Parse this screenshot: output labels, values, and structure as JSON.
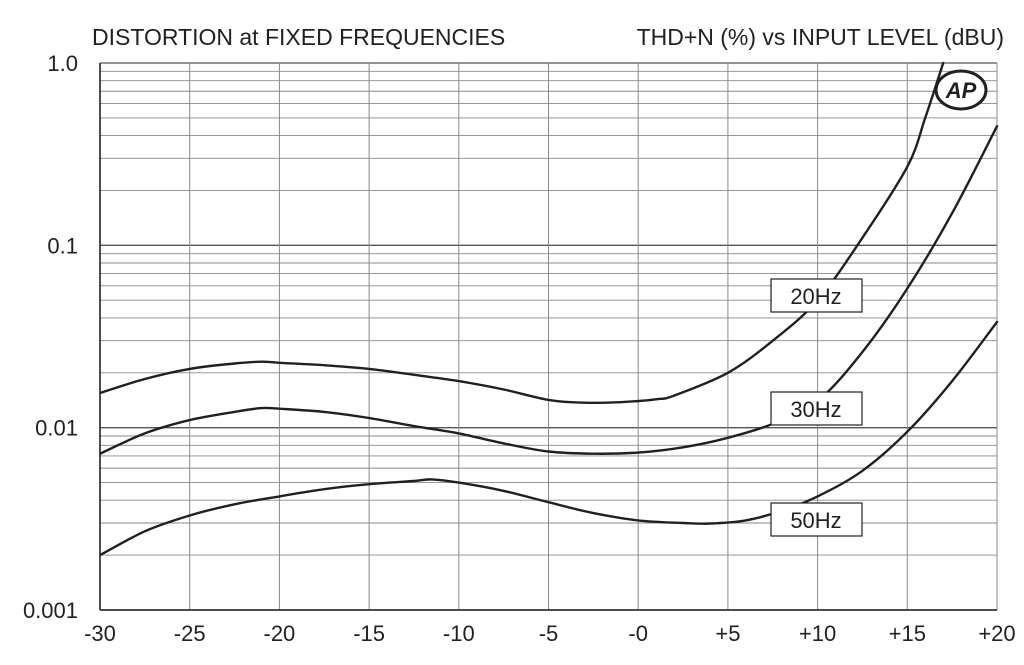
{
  "header": {
    "left_title": "DISTORTION at FIXED FREQUENCIES",
    "right_title": "THD+N (%) vs INPUT LEVEL (dBU)"
  },
  "logo": {
    "text": "AP"
  },
  "chart_data": {
    "type": "line",
    "title": "DISTORTION at FIXED FREQUENCIES",
    "subtitle": "THD+N (%) vs INPUT LEVEL (dBU)",
    "xlabel": "",
    "ylabel": "",
    "xlim": [
      -30,
      20
    ],
    "ylim": [
      0.001,
      1.0
    ],
    "yscale": "log",
    "grid": true,
    "x_ticks": [
      -30,
      -25,
      -20,
      -15,
      -10,
      -5,
      0,
      5,
      10,
      15,
      20
    ],
    "x_tick_labels": [
      "-30",
      "-25",
      "-20",
      "-15",
      "-10",
      "-5",
      "-0",
      "+5",
      "+10",
      "+15",
      "+20"
    ],
    "y_ticks": [
      0.001,
      0.01,
      0.1,
      1.0
    ],
    "y_tick_labels": [
      "0.001",
      "0.01",
      "0.1",
      "1.0"
    ],
    "series": [
      {
        "name": "20Hz",
        "x": [
          -30,
          -27.5,
          -25,
          -22.5,
          -21,
          -20,
          -17.5,
          -15,
          -12.5,
          -10,
          -7.5,
          -5,
          -3,
          -1,
          1,
          2,
          5,
          7.5,
          10,
          12.5,
          15,
          16,
          17
        ],
        "y": [
          0.0155,
          0.0185,
          0.021,
          0.0225,
          0.023,
          0.0227,
          0.022,
          0.021,
          0.0195,
          0.018,
          0.0162,
          0.0142,
          0.0137,
          0.0138,
          0.0143,
          0.015,
          0.02,
          0.03,
          0.05,
          0.11,
          0.27,
          0.5,
          1.0
        ]
      },
      {
        "name": "30Hz",
        "x": [
          -30,
          -27.5,
          -25,
          -22.5,
          -21,
          -20,
          -17.5,
          -15,
          -12.5,
          -10,
          -7.5,
          -5,
          -2.5,
          0,
          2.5,
          5,
          7.5,
          10,
          12.5,
          15,
          17.5,
          20
        ],
        "y": [
          0.0072,
          0.0093,
          0.011,
          0.0122,
          0.0128,
          0.0127,
          0.0122,
          0.0113,
          0.0102,
          0.0093,
          0.0082,
          0.0074,
          0.0072,
          0.0073,
          0.0078,
          0.0088,
          0.0105,
          0.014,
          0.026,
          0.058,
          0.15,
          0.45
        ]
      },
      {
        "name": "50Hz",
        "x": [
          -30,
          -27.5,
          -25,
          -22.5,
          -20,
          -17.5,
          -15,
          -12.5,
          -11.5,
          -10,
          -7.5,
          -5,
          -2.5,
          0,
          2.5,
          4,
          6,
          8,
          10,
          12.5,
          15,
          17.5,
          20
        ],
        "y": [
          0.002,
          0.0027,
          0.0033,
          0.0038,
          0.0042,
          0.0046,
          0.0049,
          0.0051,
          0.0052,
          0.005,
          0.0045,
          0.0039,
          0.0034,
          0.0031,
          0.003,
          0.00298,
          0.0031,
          0.0035,
          0.0042,
          0.0058,
          0.0095,
          0.018,
          0.038
        ]
      }
    ],
    "annotations": [
      "20Hz",
      "30Hz",
      "50Hz"
    ]
  }
}
